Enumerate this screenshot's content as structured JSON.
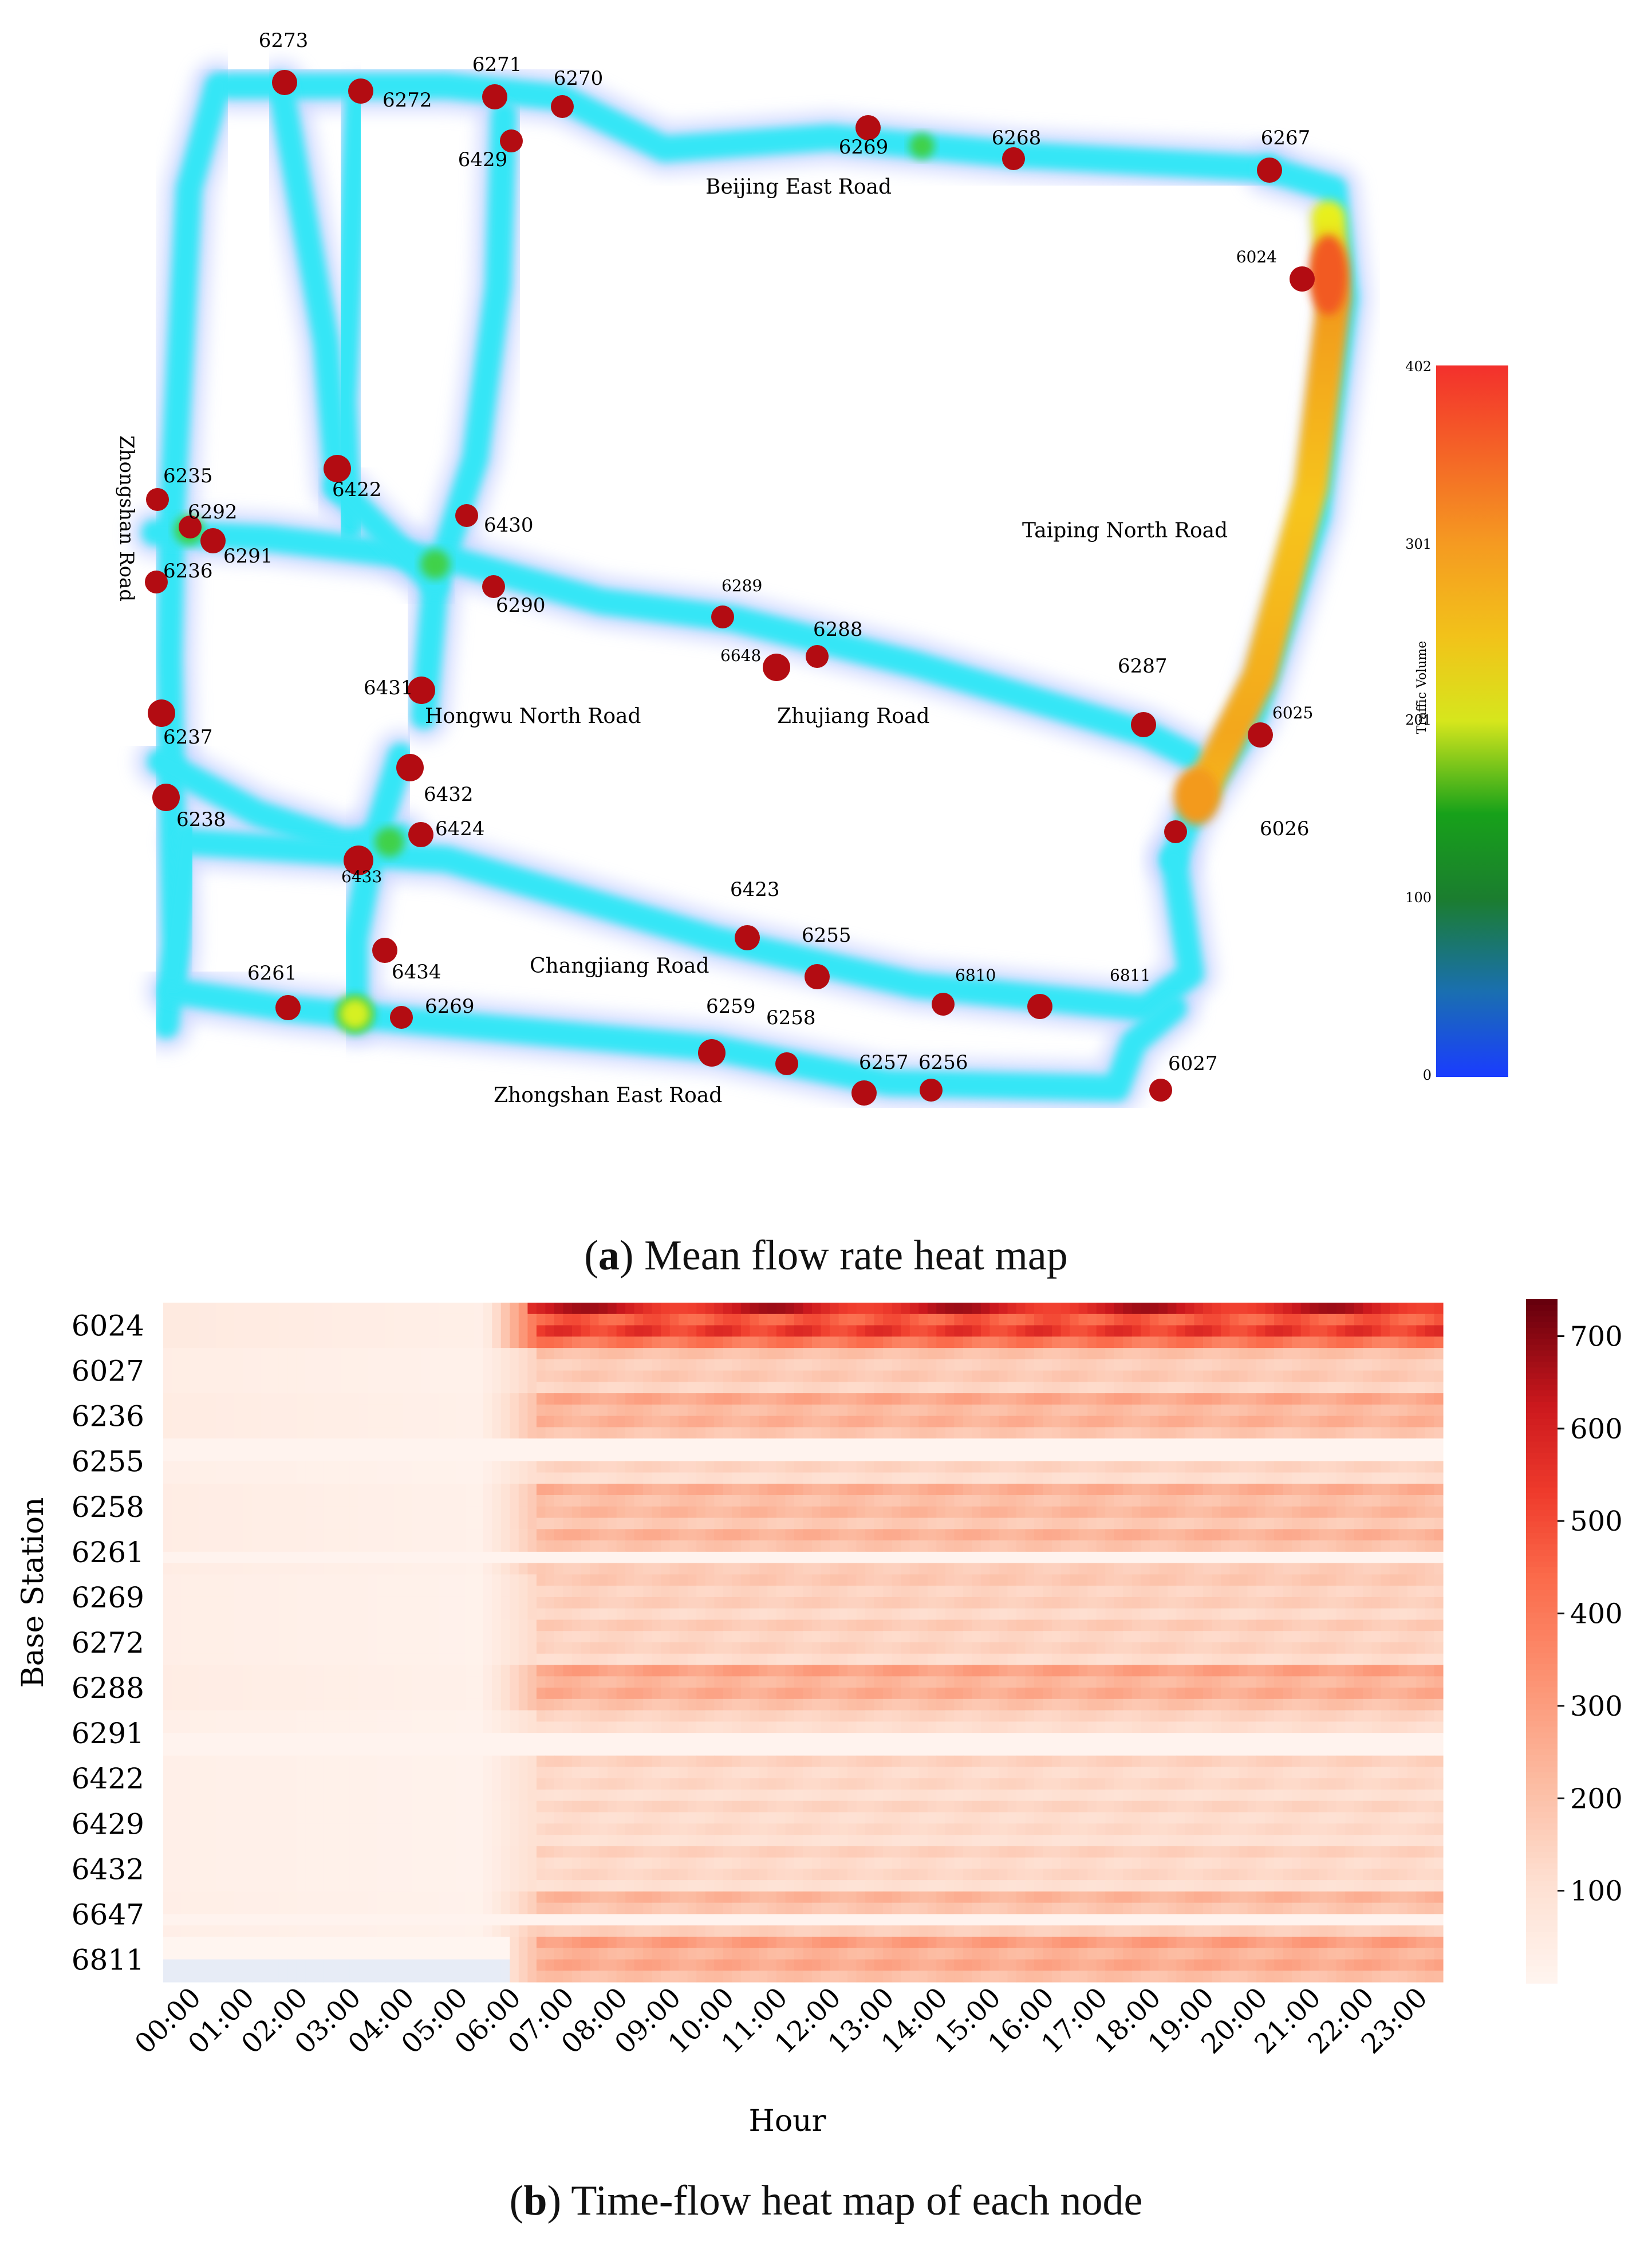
{
  "panel_a": {
    "caption_letter": "a",
    "caption_text": "Mean flow rate heat map",
    "road_labels": [
      "Beijing East Road",
      "Zhongshan Road",
      "Taiping North Road",
      "Hongwu North Road",
      "Zhujiang Road",
      "Changjiang Road",
      "Zhongshan East Road"
    ],
    "node_ids": [
      "6273",
      "6272",
      "6271",
      "6270",
      "6429",
      "6269",
      "6268",
      "6267",
      "6024",
      "6235",
      "6292",
      "6291",
      "6236",
      "6422",
      "6430",
      "6290",
      "6289",
      "6648",
      "6288",
      "6287",
      "6025",
      "6026",
      "6431",
      "6237",
      "6238",
      "6432",
      "6424",
      "6433",
      "6423",
      "6255",
      "6261",
      "6434",
      "6269",
      "6259",
      "6258",
      "6810",
      "6811",
      "6257",
      "6256",
      "6027"
    ],
    "colorbar": {
      "title": "Traffic Volume",
      "ticks": [
        "402",
        "301",
        "201",
        "100",
        "0"
      ],
      "range": [
        0,
        402
      ]
    }
  },
  "panel_b": {
    "caption_letter": "b",
    "caption_text": "Time-flow heat map of each node"
  },
  "chart_data": [
    {
      "type": "heatmap",
      "title": "Mean flow rate heat map",
      "legend": "Traffic Volume",
      "color_range": [
        0,
        402
      ],
      "colorbar_ticks": [
        0,
        100,
        201,
        301,
        402
      ],
      "hotspots": [
        {
          "road": "Taiping North Road",
          "level": "high"
        },
        {
          "road": "Beijing East Road",
          "level": "low"
        },
        {
          "road": "Zhujiang Road",
          "level": "low"
        },
        {
          "road": "Changjiang Road",
          "level": "low"
        },
        {
          "road": "Zhongshan East Road",
          "level": "low"
        }
      ]
    },
    {
      "type": "heatmap",
      "title": "Time-flow heat map of each node",
      "xlabel": "Hour",
      "ylabel": "Base Station",
      "x_tick_labels": [
        "00:00",
        "01:00",
        "02:00",
        "03:00",
        "04:00",
        "05:00",
        "06:00",
        "07:00",
        "08:00",
        "09:00",
        "10:00",
        "11:00",
        "12:00",
        "13:00",
        "14:00",
        "15:00",
        "16:00",
        "17:00",
        "18:00",
        "19:00",
        "20:00",
        "21:00",
        "22:00",
        "23:00"
      ],
      "y_tick_labels": [
        "6024",
        "6027",
        "6236",
        "6255",
        "6258",
        "6261",
        "6269",
        "6272",
        "6288",
        "6291",
        "6422",
        "6429",
        "6432",
        "6647",
        "6811"
      ],
      "colorbar_ticks": [
        100,
        200,
        300,
        400,
        500,
        600,
        700
      ],
      "color_range": [
        0,
        740
      ],
      "approx_row_levels": [
        {
          "station": "6024",
          "night": 60,
          "day": 650
        },
        {
          "station": "6027",
          "night": 40,
          "day": 220
        },
        {
          "station": "6236",
          "night": 50,
          "day": 300
        },
        {
          "station": "6255",
          "night": 30,
          "day": 180
        },
        {
          "station": "6258",
          "night": 45,
          "day": 280
        },
        {
          "station": "6261",
          "night": 45,
          "day": 270
        },
        {
          "station": "6269",
          "night": 35,
          "day": 200
        },
        {
          "station": "6272",
          "night": 35,
          "day": 190
        },
        {
          "station": "6288",
          "night": 45,
          "day": 320
        },
        {
          "station": "6291",
          "night": 30,
          "day": 160
        },
        {
          "station": "6422",
          "night": 30,
          "day": 170
        },
        {
          "station": "6429",
          "night": 30,
          "day": 160
        },
        {
          "station": "6432",
          "night": 30,
          "day": 170
        },
        {
          "station": "6647",
          "night": 35,
          "day": 260
        },
        {
          "station": "6811",
          "night": 10,
          "day": 330
        }
      ],
      "colors": {
        "low": "#fff5f0",
        "mid": "#f4614d",
        "high": "#67000d"
      }
    }
  ]
}
